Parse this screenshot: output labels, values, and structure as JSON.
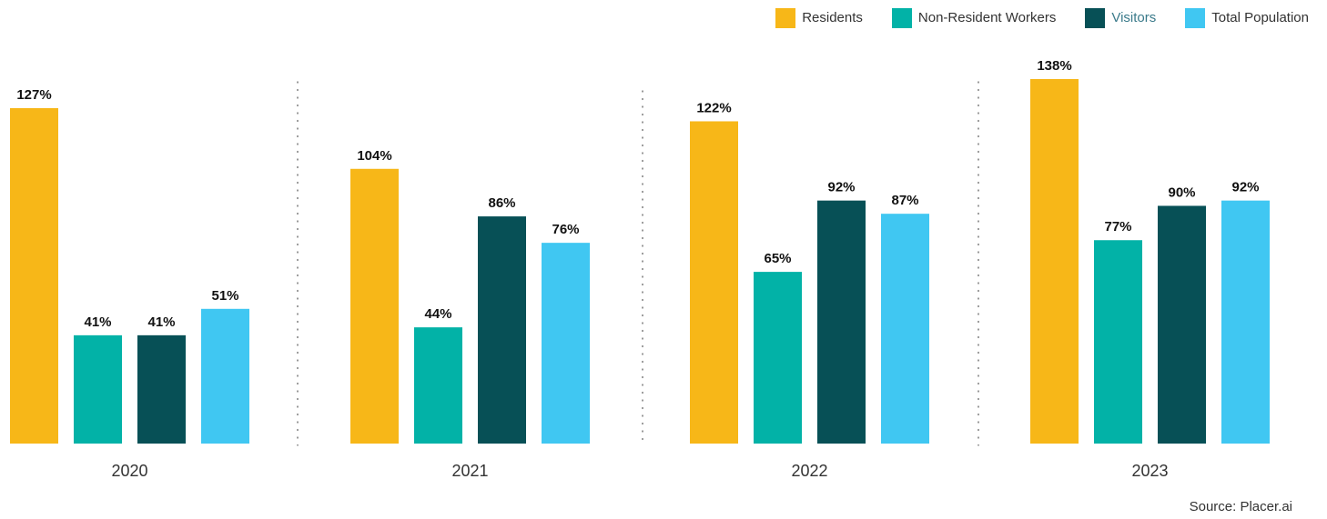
{
  "legend": {
    "items": [
      {
        "label": "Residents",
        "color": "#F7B718"
      },
      {
        "label": "Non-Resident Workers",
        "color": "#02B2A7"
      },
      {
        "label": "Visitors",
        "color": "#075056",
        "text_color": "#3A7A8A"
      },
      {
        "label": "Total Population",
        "color": "#40C7F2"
      }
    ]
  },
  "source": "Source: Placer.ai",
  "chart_data": {
    "type": "bar",
    "categories": [
      "2020",
      "2021",
      "2022",
      "2023"
    ],
    "series": [
      {
        "name": "Residents",
        "color": "#F7B718",
        "values": [
          127,
          104,
          122,
          138
        ],
        "labels": [
          "127%",
          "104%",
          "122%",
          "138%"
        ]
      },
      {
        "name": "Non-Resident Workers",
        "color": "#02B2A7",
        "values": [
          41,
          44,
          65,
          77
        ],
        "labels": [
          "41%",
          "44%",
          "65%",
          "77%"
        ]
      },
      {
        "name": "Visitors",
        "color": "#075056",
        "values": [
          41,
          86,
          92,
          90
        ],
        "labels": [
          "41%",
          "86%",
          "92%",
          "90%"
        ]
      },
      {
        "name": "Total Population",
        "color": "#40C7F2",
        "values": [
          51,
          76,
          87,
          92
        ],
        "labels": [
          "51%",
          "76%",
          "87%",
          "92%"
        ]
      }
    ],
    "value_unit": "%",
    "ylim": [
      0,
      140
    ],
    "grid": false,
    "legend_position": "top-right",
    "group_separators": "dotted"
  }
}
